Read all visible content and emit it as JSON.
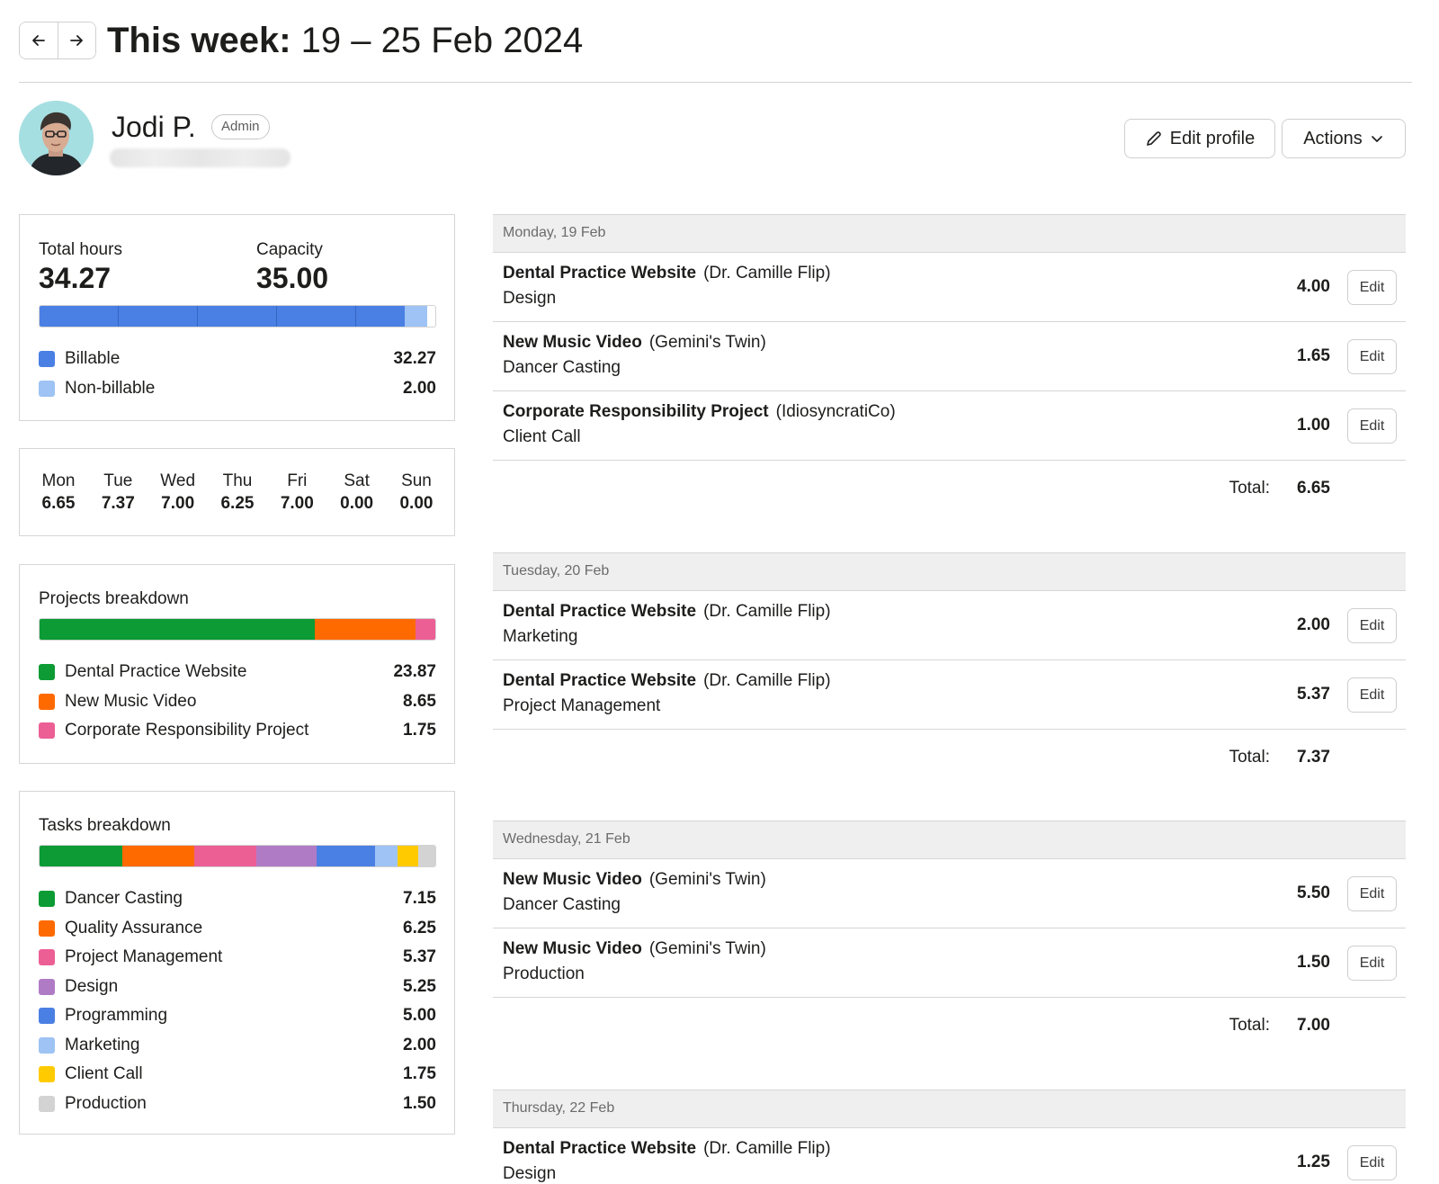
{
  "header": {
    "prev_label": "←",
    "next_label": "→",
    "title_prefix": "This week:",
    "title_range": "19 – 25 Feb 2024"
  },
  "profile": {
    "name": "Jodi P.",
    "role": "Admin",
    "edit_label": "Edit profile",
    "actions_label": "Actions"
  },
  "summary": {
    "total_hours_label": "Total hours",
    "total_hours": "34.27",
    "capacity_label": "Capacity",
    "capacity": "35.00",
    "billable_label": "Billable",
    "billable": "32.27",
    "non_billable_label": "Non-billable",
    "non_billable": "2.00",
    "colors": {
      "billable": "#4a7fe4",
      "non_billable": "#9ec3f4"
    }
  },
  "week": [
    {
      "day": "Mon",
      "hours": "6.65"
    },
    {
      "day": "Tue",
      "hours": "7.37"
    },
    {
      "day": "Wed",
      "hours": "7.00"
    },
    {
      "day": "Thu",
      "hours": "6.25"
    },
    {
      "day": "Fri",
      "hours": "7.00"
    },
    {
      "day": "Sat",
      "hours": "0.00"
    },
    {
      "day": "Sun",
      "hours": "0.00"
    }
  ],
  "projects": {
    "title": "Projects breakdown",
    "items": [
      {
        "name": "Dental Practice Website",
        "hours": "23.87",
        "color": "#0c9b34"
      },
      {
        "name": "New Music Video",
        "hours": "8.65",
        "color": "#ff6a00"
      },
      {
        "name": "Corporate Responsibility Project",
        "hours": "1.75",
        "color": "#ec5f95"
      }
    ]
  },
  "tasks": {
    "title": "Tasks breakdown",
    "items": [
      {
        "name": "Dancer Casting",
        "hours": "7.15",
        "color": "#0c9b34"
      },
      {
        "name": "Quality Assurance",
        "hours": "6.25",
        "color": "#ff6a00"
      },
      {
        "name": "Project Management",
        "hours": "5.37",
        "color": "#ec5f95"
      },
      {
        "name": "Design",
        "hours": "5.25",
        "color": "#b07bc5"
      },
      {
        "name": "Programming",
        "hours": "5.00",
        "color": "#4a7fe4"
      },
      {
        "name": "Marketing",
        "hours": "2.00",
        "color": "#9ec3f4"
      },
      {
        "name": "Client Call",
        "hours": "1.75",
        "color": "#ffcb00"
      },
      {
        "name": "Production",
        "hours": "1.50",
        "color": "#d3d3d3"
      }
    ]
  },
  "edit_label": "Edit",
  "total_label": "Total:",
  "days": [
    {
      "header": "Monday, 19 Feb",
      "total": "6.65",
      "entries": [
        {
          "project": "Dental Practice Website",
          "client": "(Dr. Camille Flip)",
          "task": "Design",
          "hours": "4.00"
        },
        {
          "project": "New Music Video",
          "client": "(Gemini's Twin)",
          "task": "Dancer Casting",
          "hours": "1.65"
        },
        {
          "project": "Corporate Responsibility Project",
          "client": "(IdiosyncratiCo)",
          "task": "Client Call",
          "hours": "1.00"
        }
      ]
    },
    {
      "header": "Tuesday, 20 Feb",
      "total": "7.37",
      "entries": [
        {
          "project": "Dental Practice Website",
          "client": "(Dr. Camille Flip)",
          "task": "Marketing",
          "hours": "2.00"
        },
        {
          "project": "Dental Practice Website",
          "client": "(Dr. Camille Flip)",
          "task": "Project Management",
          "hours": "5.37"
        }
      ]
    },
    {
      "header": "Wednesday, 21 Feb",
      "total": "7.00",
      "entries": [
        {
          "project": "New Music Video",
          "client": "(Gemini's Twin)",
          "task": "Dancer Casting",
          "hours": "5.50"
        },
        {
          "project": "New Music Video",
          "client": "(Gemini's Twin)",
          "task": "Production",
          "hours": "1.50"
        }
      ]
    },
    {
      "header": "Thursday, 22 Feb",
      "entries": [
        {
          "project": "Dental Practice Website",
          "client": "(Dr. Camille Flip)",
          "task": "Design",
          "hours": "1.25"
        }
      ]
    }
  ]
}
